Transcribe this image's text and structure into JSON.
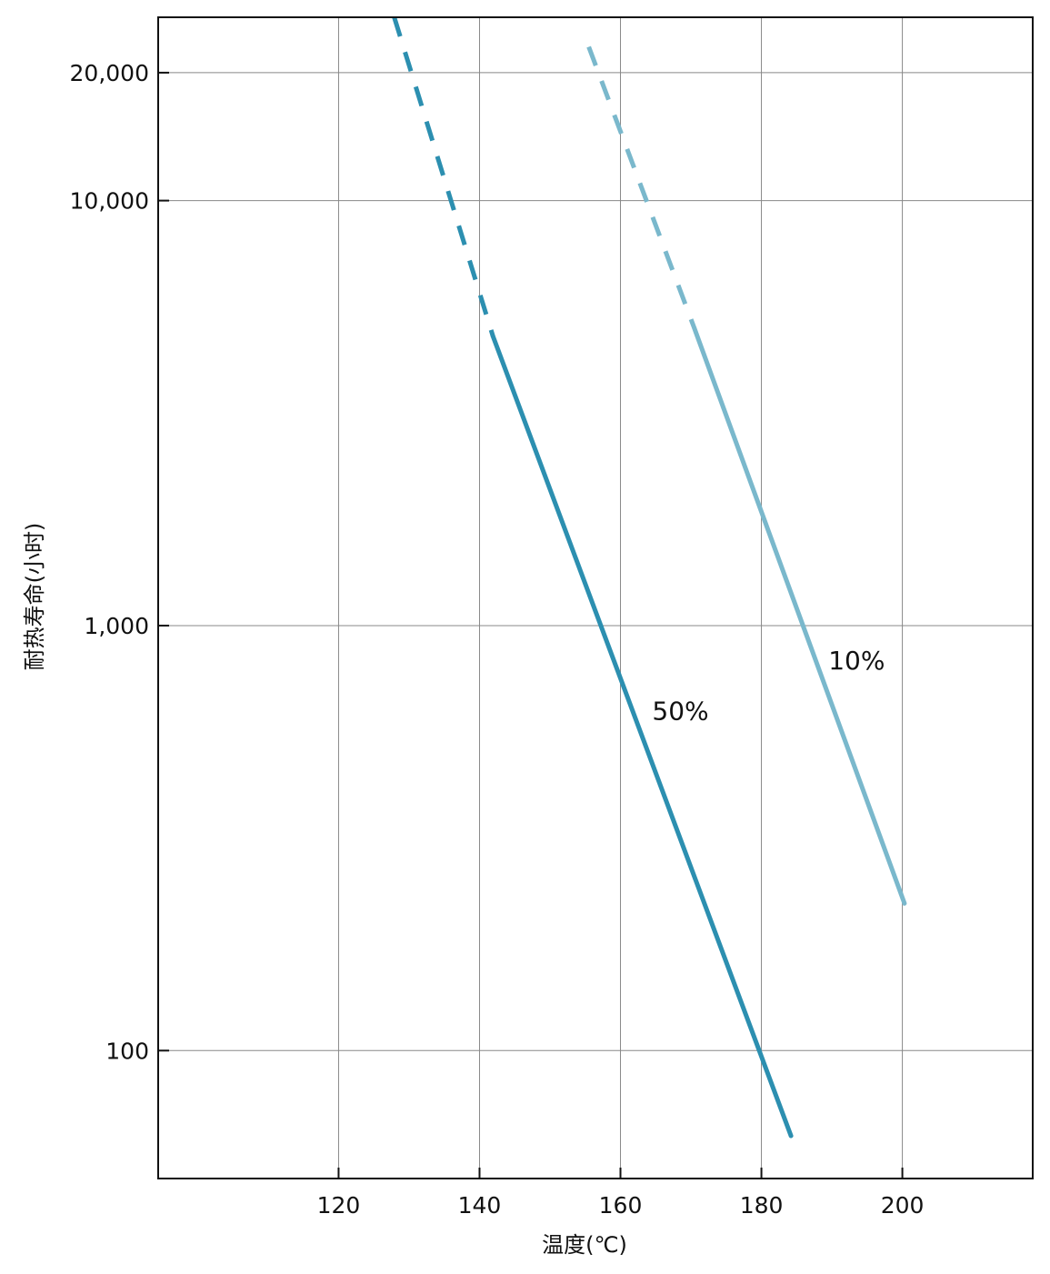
{
  "chart_data": {
    "type": "line",
    "title": "",
    "xlabel": "温度(℃)",
    "ylabel": "耐热寿命(小时)",
    "xscale": "linear",
    "yscale": "log",
    "xlim": [
      94.4,
      218.5
    ],
    "ylim": [
      50,
      27000
    ],
    "x_ticks": [
      120,
      140,
      160,
      180,
      200
    ],
    "x_tick_labels": [
      "120",
      "140",
      "160",
      "180",
      "200"
    ],
    "y_ticks": [
      100,
      1000,
      10000,
      20000
    ],
    "y_tick_labels": [
      "100",
      "1,000",
      "10,000",
      "20,000"
    ],
    "grid": true,
    "colors": {
      "series_50": "#2c8fb0",
      "series_10": "#7ab8cc",
      "grid": "#888888",
      "frame": "#111111"
    },
    "series": [
      {
        "name": "50%",
        "color": "#2c8fb0",
        "extrapolated": [
          [
            127.9,
            27000
          ],
          [
            141.9,
            4800
          ]
        ],
        "measured": [
          [
            141.9,
            4800
          ],
          [
            184.2,
            63
          ]
        ],
        "label_at": [
          164.5,
          600
        ]
      },
      {
        "name": "10%",
        "color": "#7ab8cc",
        "extrapolated": [
          [
            155.5,
            23000
          ],
          [
            170.5,
            5000
          ]
        ],
        "measured": [
          [
            170.5,
            5000
          ],
          [
            200.3,
            222
          ]
        ],
        "label_at": [
          189.5,
          790
        ]
      }
    ]
  }
}
